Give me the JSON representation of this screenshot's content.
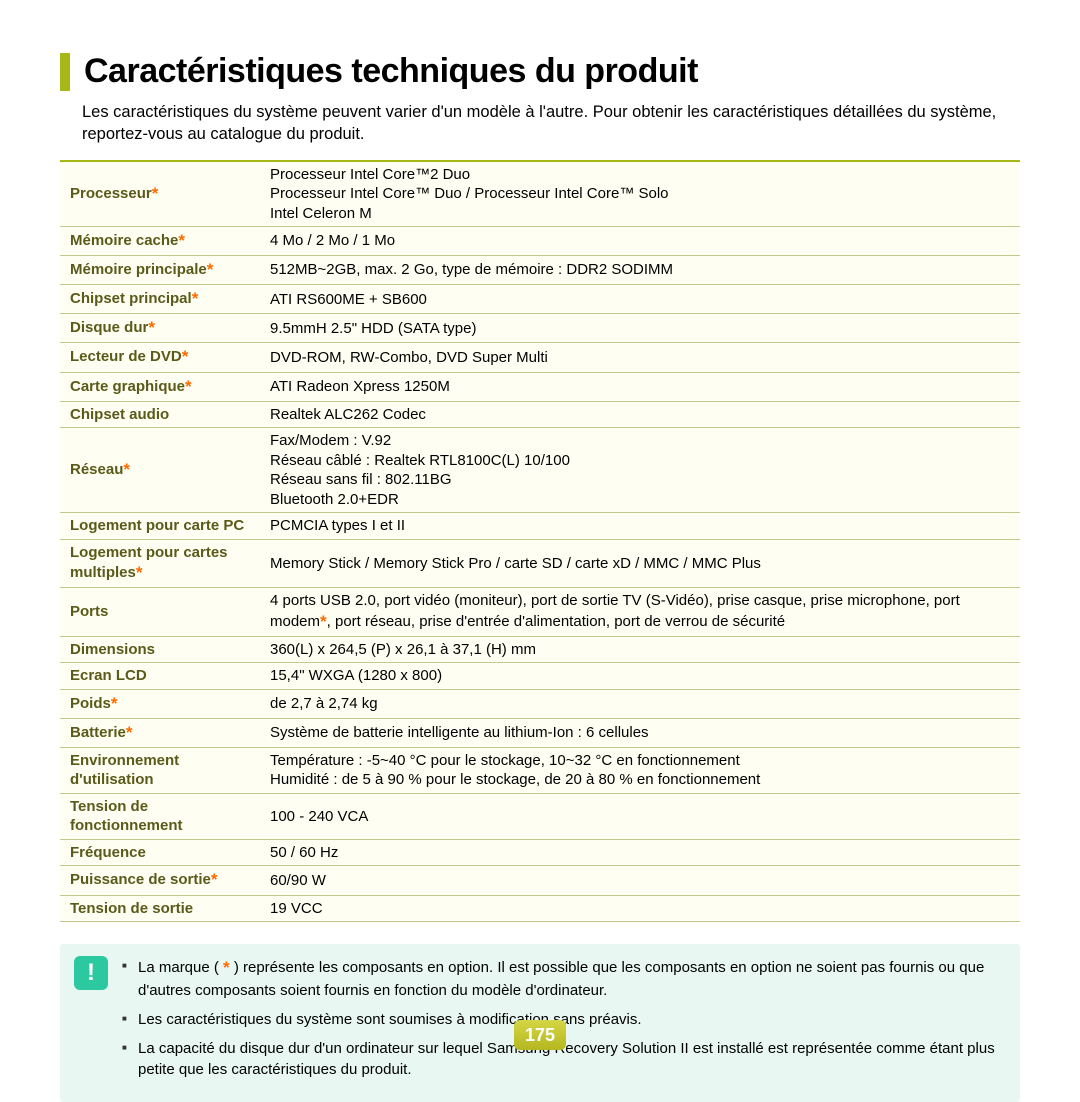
{
  "colors": {
    "accent": "#a6b818",
    "row_bg": "#fefff2",
    "row_border": "#c5c98f",
    "label_text": "#5a5a1a",
    "star": "#ff6a00",
    "note_bg": "#e8f7f2",
    "note_icon_bg": "#2cc9a0",
    "pagenum_bg_top": "#d4d645",
    "pagenum_bg_bot": "#b5b820"
  },
  "typography": {
    "title_fontsize": 34,
    "body_fontsize": 15
  },
  "title": "Caractéristiques techniques du produit",
  "intro": "Les caractéristiques du système peuvent varier d'un modèle à l'autre. Pour obtenir les caractéristiques détaillées du système, reportez-vous au catalogue du produit.",
  "spec_rows": [
    {
      "label": "Processeur",
      "star": true,
      "value": "Processeur Intel Core™2 Duo\nProcesseur Intel Core™ Duo / Processeur Intel Core™ Solo\nIntel Celeron M"
    },
    {
      "label": "Mémoire  cache",
      "star": true,
      "value": "4 Mo / 2 Mo / 1 Mo"
    },
    {
      "label": "Mémoire principale",
      "star": true,
      "value": "512MB~2GB, max. 2 Go, type de mémoire : DDR2 SODIMM"
    },
    {
      "label": "Chipset principal",
      "star": true,
      "value": "ATI RS600ME + SB600"
    },
    {
      "label": "Disque dur",
      "star": true,
      "value": "9.5mmH 2.5\" HDD (SATA type)"
    },
    {
      "label": "Lecteur de DVD",
      "star": true,
      "value": "DVD-ROM, RW-Combo, DVD Super Multi"
    },
    {
      "label": "Carte graphique",
      "star": true,
      "value": "ATI Radeon Xpress 1250M"
    },
    {
      "label": "Chipset audio",
      "star": false,
      "value": "Realtek ALC262 Codec"
    },
    {
      "label": "Réseau",
      "star": true,
      "value": "Fax/Modem : V.92\nRéseau câblé : Realtek RTL8100C(L) 10/100\nRéseau sans fil : 802.11BG\nBluetooth 2.0+EDR"
    },
    {
      "label": "Logement pour carte PC",
      "star": false,
      "value": "PCMCIA types I et II"
    },
    {
      "label": "Logement pour cartes multiples",
      "star": true,
      "value": "Memory Stick / Memory Stick Pro / carte SD / carte xD / MMC / MMC Plus"
    },
    {
      "label": "Ports",
      "star": false,
      "value_html": "4 ports USB 2.0, port vidéo (moniteur), port de sortie TV (S-Vidéo), prise casque, prise microphone, port modem<span class=\"star\">*</span>, port réseau, prise d'entrée d'alimentation, port de verrou de sécurité"
    },
    {
      "label": "Dimensions",
      "star": false,
      "value": "360(L) x 264,5 (P) x 26,1 à 37,1 (H) mm"
    },
    {
      "label": "Ecran LCD",
      "star": false,
      "value": "15,4\" WXGA (1280 x 800)"
    },
    {
      "label": "Poids",
      "star": true,
      "value": "de 2,7 à 2,74 kg"
    },
    {
      "label": "Batterie",
      "star": true,
      "value": "Système de batterie intelligente au lithium-Ion : 6 cellules"
    },
    {
      "label": "Environnement d'utilisation",
      "star": false,
      "value": "Température : -5~40 °C pour le stockage, 10~32 °C en fonctionnement\nHumidité : de 5 à 90 % pour le stockage, de 20 à 80 % en fonctionnement"
    },
    {
      "label": "Tension de fonctionnement",
      "star": false,
      "value": "100 - 240 VCA"
    },
    {
      "label": "Fréquence",
      "star": false,
      "value": "50 / 60 Hz"
    },
    {
      "label": "Puissance de sortie",
      "star": true,
      "value": "60/90 W"
    },
    {
      "label": "Tension de sortie",
      "star": false,
      "value": "19 VCC"
    }
  ],
  "notes": [
    "La marque ( <span class=\"star\">*</span> ) représente les composants en option. Il est possible que les composants en option ne soient pas fournis ou que d'autres composants soient fournis en fonction du modèle d'ordinateur.",
    "Les caractéristiques du système sont soumises à modification sans préavis.",
    "La capacité du disque dur d'un ordinateur sur lequel Samsung Recovery Solution II est installé est représentée comme étant plus petite que les caractéristiques du produit."
  ],
  "page_number": "175"
}
